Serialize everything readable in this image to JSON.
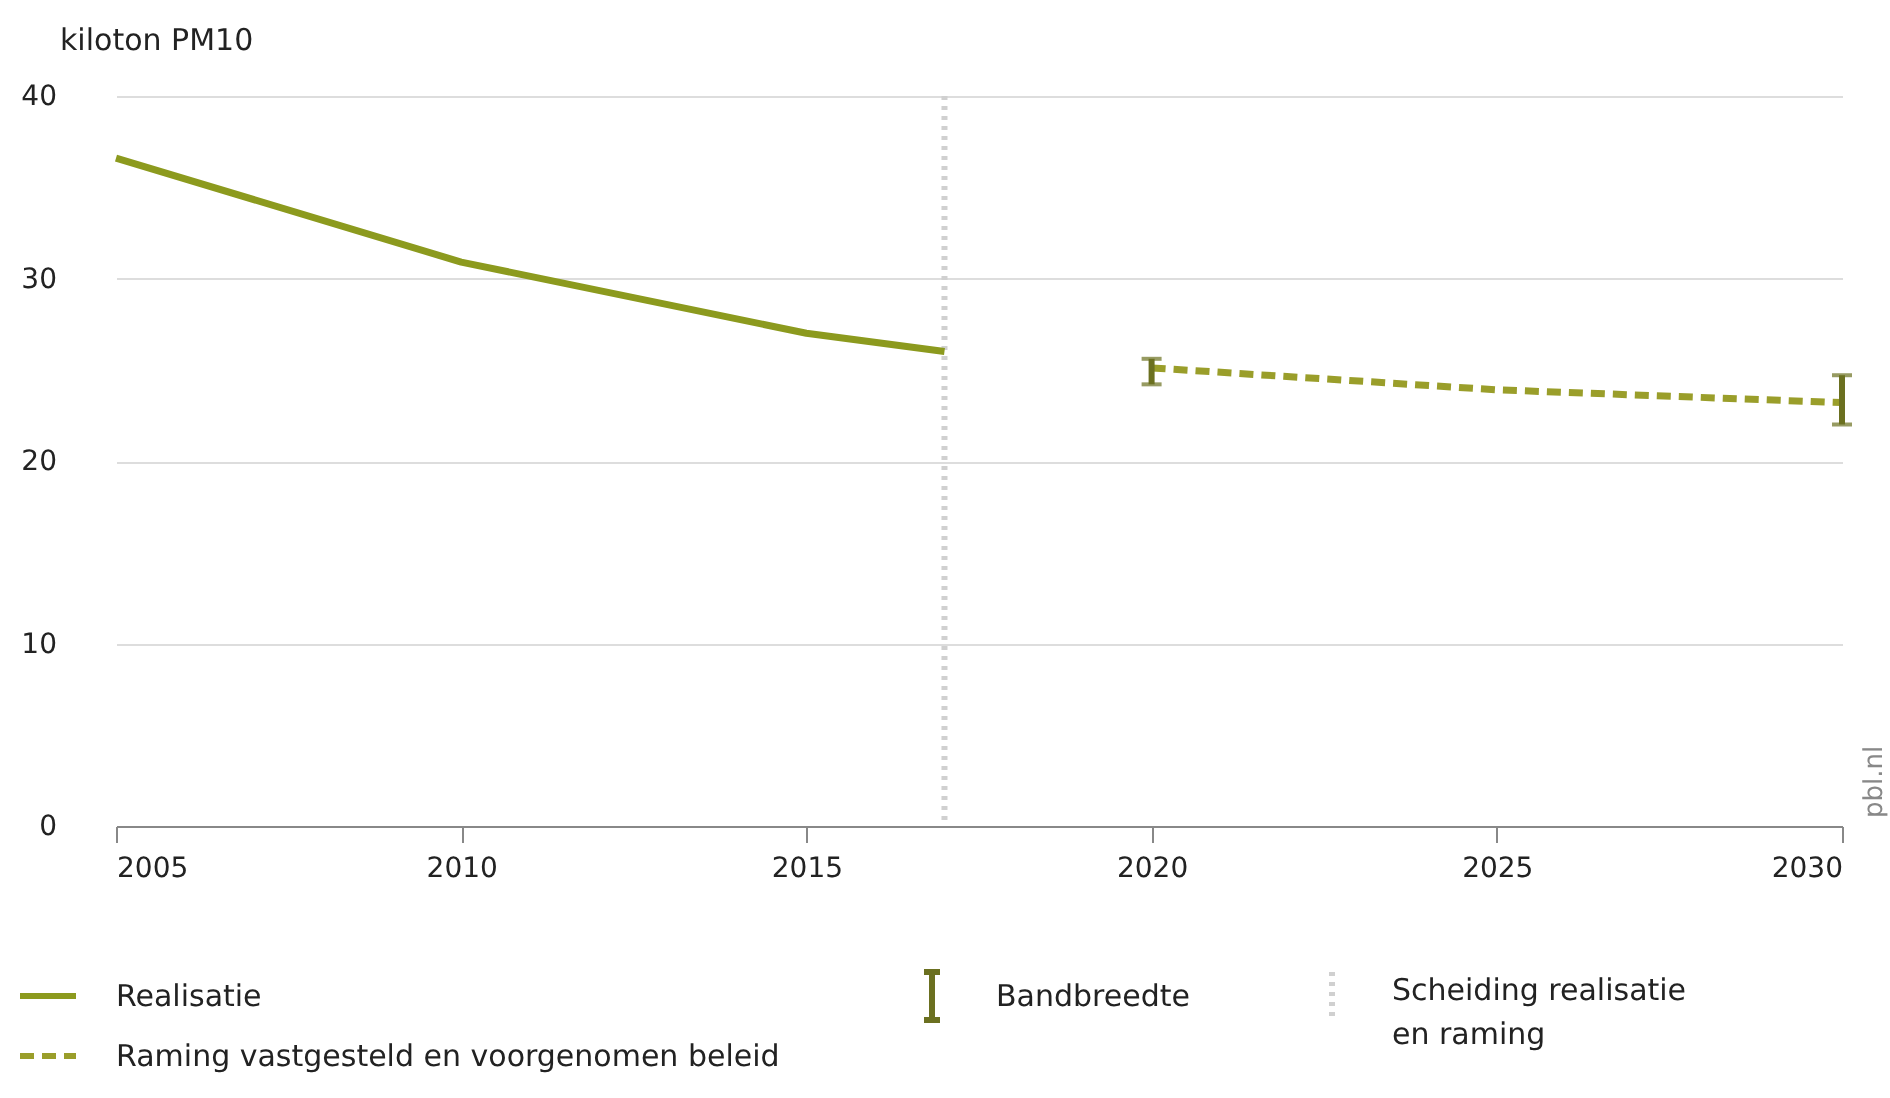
{
  "chart_data": {
    "type": "line",
    "ylabel": "kiloton PM10",
    "series": [
      {
        "name": "Realisatie",
        "color": "#8c9a1e",
        "line_style": "solid",
        "x": [
          2005,
          2010,
          2015,
          2017
        ],
        "values": [
          36.6,
          30.9,
          27.0,
          26.0
        ]
      },
      {
        "name": "Raming vastgesteld en voorgenomen beleid",
        "color": "#9a9e2a",
        "line_style": "dashed",
        "x": [
          2020,
          2025,
          2030
        ],
        "values": [
          25.1,
          23.9,
          23.2
        ],
        "errors": [
          [
            24.2,
            25.6
          ],
          null,
          [
            22.0,
            24.7
          ]
        ]
      }
    ],
    "xlim": [
      2005,
      2030
    ],
    "xticks": [
      2005,
      2010,
      2015,
      2020,
      2025,
      2030
    ],
    "ylim": [
      0,
      40
    ],
    "yticks": [
      0,
      10,
      20,
      30,
      40
    ],
    "grid": "y",
    "legend": "bottom",
    "marker": "none",
    "ref_lines": [
      {
        "axis": "x",
        "value": 2017,
        "label": "Scheiding realisatie\nen raming",
        "color": "#d0d0d0",
        "line_style": "dotted"
      }
    ],
    "annotations": [
      "Bandbreedte",
      "pbl.nl"
    ]
  }
}
